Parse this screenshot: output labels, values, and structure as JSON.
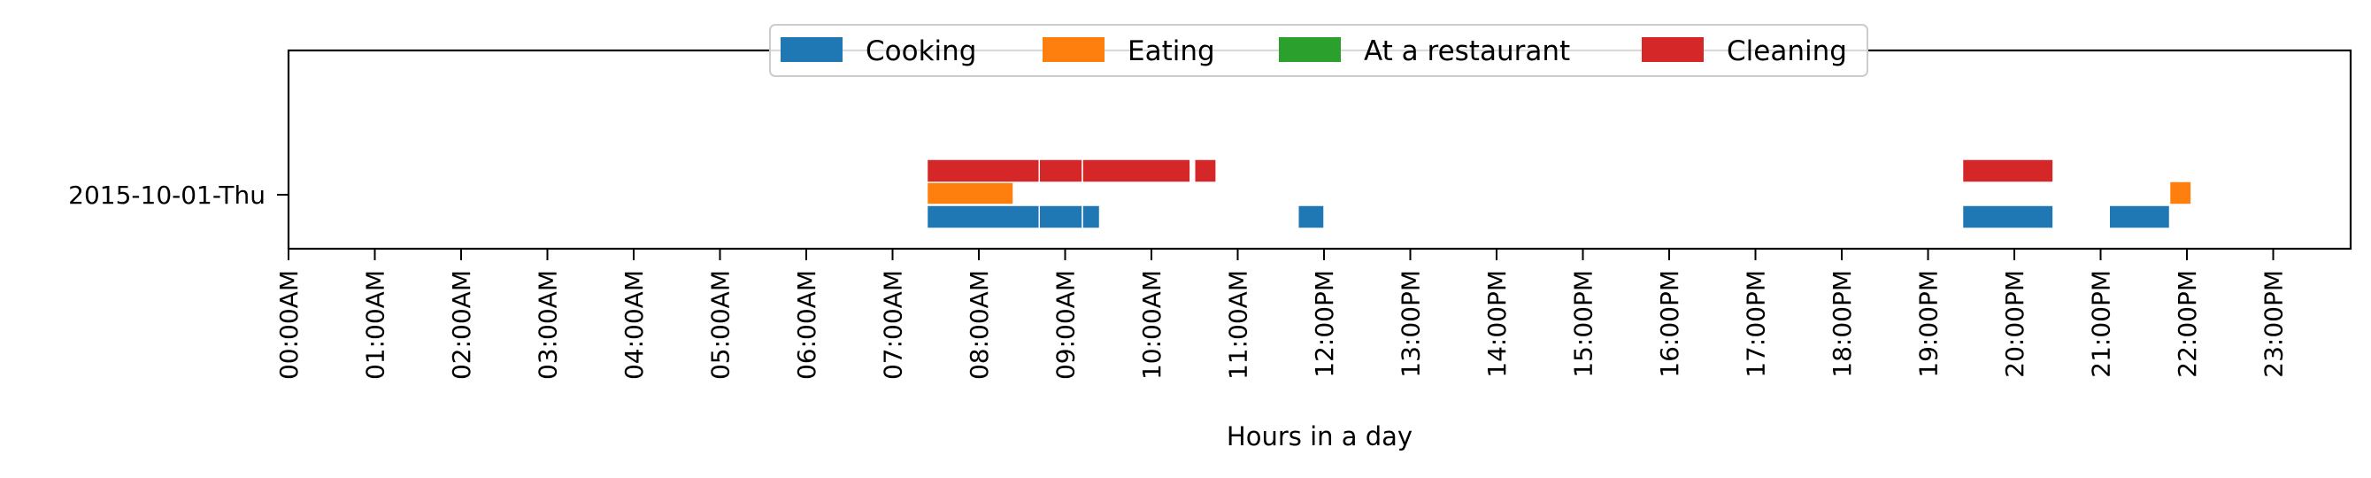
{
  "chart_data": {
    "type": "timeline",
    "xlabel": "Hours in a day",
    "x_tick_labels": [
      "00:00AM",
      "01:00AM",
      "02:00AM",
      "03:00AM",
      "04:00AM",
      "05:00AM",
      "06:00AM",
      "07:00AM",
      "08:00AM",
      "09:00AM",
      "10:00AM",
      "11:00AM",
      "12:00PM",
      "13:00PM",
      "14:00PM",
      "15:00PM",
      "16:00PM",
      "17:00PM",
      "18:00PM",
      "19:00PM",
      "20:00PM",
      "21:00PM",
      "22:00PM",
      "23:00PM"
    ],
    "xlim": [
      0,
      24
    ],
    "y_categories": [
      "2015-10-01-Thu"
    ],
    "legend_position": "top-center",
    "series": [
      {
        "name": "Cooking",
        "color": "#1f77b4",
        "intervals": [
          [
            7.4,
            8.7
          ],
          [
            8.7,
            9.2
          ],
          [
            9.2,
            9.4
          ],
          [
            11.7,
            12.0
          ],
          [
            19.4,
            20.45
          ],
          [
            21.1,
            21.8
          ]
        ]
      },
      {
        "name": "Eating",
        "color": "#ff7f0e",
        "intervals": [
          [
            7.4,
            8.4
          ],
          [
            21.8,
            22.05
          ]
        ]
      },
      {
        "name": "At a restaurant",
        "color": "#2ca02c",
        "intervals": []
      },
      {
        "name": "Cleaning",
        "color": "#d62728",
        "intervals": [
          [
            7.4,
            8.7
          ],
          [
            8.7,
            9.2
          ],
          [
            9.2,
            10.45
          ],
          [
            10.5,
            10.75
          ],
          [
            19.4,
            20.45
          ]
        ]
      }
    ]
  }
}
